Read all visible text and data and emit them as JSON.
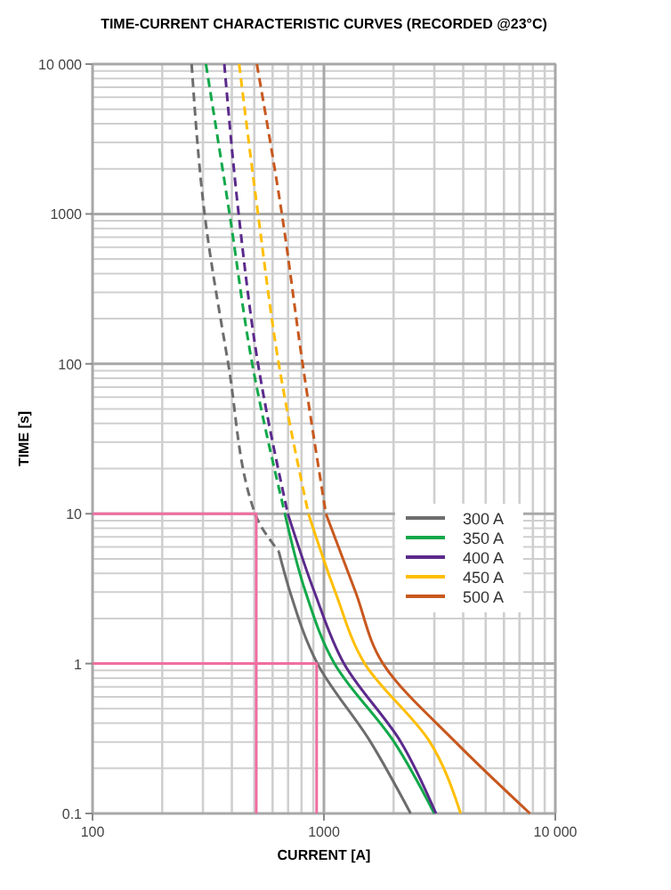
{
  "chart_data": {
    "type": "line",
    "title": "TIME-CURRENT CHARACTERISTIC CURVES (RECORDED @23°C)",
    "xlabel": "CURRENT [A]",
    "ylabel": "TIME [s]",
    "log": "xy",
    "grid": true,
    "legend": "right",
    "xlim": [
      100,
      10000
    ],
    "xticks": [
      100,
      1000,
      {
        "value": 10000,
        "label": "10 000"
      }
    ],
    "ylim": [
      0.1,
      10000
    ],
    "yticks": [
      0.1,
      1,
      10,
      100,
      1000,
      {
        "value": 10000,
        "label": "10 000"
      }
    ],
    "series": [
      {
        "color": "#6d6d6d",
        "line_style": "dashed",
        "x": [
          268,
          305,
          386,
          504,
          638
        ],
        "values": [
          10000,
          1000,
          100,
          10,
          5.6
        ]
      },
      {
        "name": "300 A",
        "color": "#6d6d6d",
        "line_style": "solid",
        "x": [
          638,
          714,
          937,
          1590,
          2370
        ],
        "values": [
          5.6,
          3,
          1,
          0.3,
          0.1
        ]
      },
      {
        "color": "#12a84a",
        "line_style": "dashed",
        "x": [
          309,
          391,
          490,
          678
        ],
        "values": [
          10000,
          1000,
          100,
          10
        ]
      },
      {
        "name": "350 A",
        "color": "#12a84a",
        "line_style": "solid",
        "x": [
          678,
          833,
          1110,
          2010,
          3000
        ],
        "values": [
          10,
          3,
          1,
          0.3,
          0.1
        ]
      },
      {
        "color": "#5b2a8c",
        "line_style": "dashed",
        "x": [
          371,
          428,
          519,
          698
        ],
        "values": [
          10000,
          1000,
          100,
          10
        ]
      },
      {
        "name": "400 A",
        "color": "#5b2a8c",
        "line_style": "solid",
        "x": [
          698,
          910,
          1220,
          2150,
          3050
        ],
        "values": [
          10,
          3,
          1,
          0.3,
          0.1
        ]
      },
      {
        "color": "#ffbe00",
        "line_style": "dashed",
        "x": [
          430,
          519,
          638,
          857
        ],
        "values": [
          10000,
          1000,
          100,
          10
        ]
      },
      {
        "name": "450 A",
        "color": "#ffbe00",
        "line_style": "solid",
        "x": [
          857,
          1120,
          1500,
          2870,
          3900
        ],
        "values": [
          10,
          3,
          1,
          0.3,
          0.1
        ]
      },
      {
        "color": "#c8581e",
        "line_style": "dashed",
        "x": [
          513,
          658,
          809,
          1020
        ],
        "values": [
          10000,
          1000,
          100,
          10
        ]
      },
      {
        "name": "500 A",
        "color": "#c8581e",
        "line_style": "solid",
        "x": [
          1020,
          1370,
          1800,
          3700,
          7770
        ],
        "values": [
          10,
          3,
          1,
          0.3,
          0.1
        ]
      },
      {
        "color": "#f06ea0",
        "line_style": "solid",
        "x": [
          100,
          510,
          510
        ],
        "values": [
          10,
          10,
          0.1
        ]
      },
      {
        "color": "#f06ea0",
        "line_style": "solid",
        "x": [
          100,
          930,
          930
        ],
        "values": [
          1,
          1,
          0.1
        ]
      }
    ]
  }
}
